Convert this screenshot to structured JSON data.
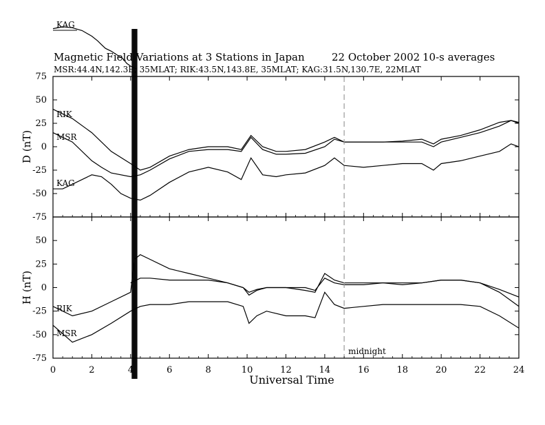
{
  "chart_data": {
    "type": "line",
    "title": "Magnetic Field Variations at 3 Stations in Japan",
    "date": "22 October 2002",
    "averaging": "10-s averages",
    "subtitle": "MSR:44.4N,142.3E, 35MLAT;  RIK:43.5N,143.8E, 35MLAT;  KAG:31.5N,130.7E, 22MLAT",
    "xlabel": "Universal Time",
    "xlim": [
      0,
      24
    ],
    "x_ticks": [
      0,
      2,
      4,
      6,
      8,
      10,
      12,
      14,
      16,
      18,
      20,
      22,
      24
    ],
    "x_tick_labels": [
      "0",
      "2",
      "4",
      "6",
      "8",
      "10",
      "12",
      "14",
      "16",
      "18",
      "20",
      "22",
      "24"
    ],
    "midnight_marker": {
      "x": 15,
      "label": "midnight"
    },
    "panels": [
      {
        "id": "D",
        "ylabel": "D (nT)",
        "ylim": [
          -75,
          75
        ],
        "y_ticks": [
          75,
          50,
          25,
          0,
          -25,
          -50,
          -75
        ],
        "y_tick_labels": [
          "75",
          "50",
          "25",
          "0",
          "-25",
          "-50",
          "-75"
        ],
        "series": [
          {
            "name": "RIK",
            "x": [
              0,
              1,
              2,
              3,
              4,
              4.5,
              5,
              6,
              7,
              8,
              9,
              9.7,
              10.2,
              10.8,
              11.5,
              12,
              13,
              14,
              14.5,
              15,
              16,
              17,
              18,
              19,
              19.6,
              20,
              21,
              22,
              23,
              23.6,
              24
            ],
            "y": [
              40,
              30,
              15,
              -5,
              -18,
              -25,
              -22,
              -10,
              -3,
              0,
              0,
              -3,
              12,
              0,
              -5,
              -5,
              -3,
              5,
              10,
              5,
              5,
              5,
              5,
              5,
              0,
              5,
              10,
              15,
              22,
              28,
              26
            ]
          },
          {
            "name": "MSR",
            "x": [
              0,
              1,
              2,
              2.5,
              3,
              4,
              4.5,
              5,
              6,
              7,
              8,
              9,
              9.7,
              10.2,
              10.8,
              11.5,
              12,
              13,
              14,
              14.5,
              15,
              16,
              17,
              18,
              19,
              19.6,
              20,
              21,
              22,
              23,
              23.6,
              24
            ],
            "y": [
              15,
              5,
              -15,
              -22,
              -28,
              -32,
              -30,
              -25,
              -13,
              -5,
              -3,
              -3,
              -5,
              10,
              -3,
              -8,
              -8,
              -7,
              0,
              8,
              5,
              5,
              5,
              6,
              8,
              3,
              8,
              12,
              18,
              26,
              28,
              25
            ]
          },
          {
            "name": "KAG",
            "x": [
              0,
              0.5,
              1,
              2,
              2.5,
              3,
              3.5,
              4,
              4.5,
              5,
              6,
              7,
              8,
              9,
              9.7,
              10.2,
              10.8,
              11.5,
              12,
              13,
              14,
              14.5,
              15,
              16,
              17,
              18,
              19,
              19.6,
              20,
              21,
              22,
              23,
              23.6,
              24
            ],
            "y": [
              -45,
              -45,
              -40,
              -30,
              -32,
              -40,
              -50,
              -55,
              -57,
              -52,
              -38,
              -27,
              -22,
              -27,
              -35,
              -12,
              -30,
              -32,
              -30,
              -28,
              -20,
              -12,
              -20,
              -22,
              -20,
              -18,
              -18,
              -25,
              -18,
              -15,
              -10,
              -5,
              3,
              0
            ]
          }
        ]
      },
      {
        "id": "H",
        "ylabel": "H (nT)",
        "ylim": [
          -75,
          75
        ],
        "y_ticks": [
          75,
          50,
          25,
          0,
          -25,
          -50,
          -75
        ],
        "y_tick_labels": [
          "75",
          "50",
          "25",
          "0",
          "-25",
          "-50",
          "-75"
        ],
        "series": [
          {
            "name": "RIK",
            "x": [
              0,
              1,
              2,
              3,
              4,
              4.2,
              4.5,
              5,
              6,
              7,
              8,
              9,
              9.8,
              10.1,
              10.5,
              11,
              12,
              13,
              13.5,
              14,
              14.5,
              15,
              16,
              17,
              18,
              19,
              20,
              21,
              22,
              23,
              24
            ],
            "y": [
              -20,
              -30,
              -25,
              -15,
              -5,
              30,
              35,
              30,
              20,
              15,
              10,
              5,
              0,
              -8,
              -3,
              0,
              0,
              -3,
              -5,
              15,
              8,
              5,
              5,
              5,
              3,
              5,
              8,
              8,
              5,
              -5,
              -20
            ]
          },
          {
            "name": "MSR",
            "x": [
              0,
              1,
              2,
              3,
              4,
              4.5,
              5,
              6,
              7,
              8,
              9,
              9.8,
              10.1,
              10.5,
              11,
              12,
              13,
              13.5,
              14,
              14.5,
              15,
              16,
              17,
              18,
              19,
              20,
              21,
              22,
              23,
              24
            ],
            "y": [
              -40,
              -58,
              -50,
              -38,
              -25,
              -20,
              -18,
              -18,
              -15,
              -15,
              -15,
              -20,
              -38,
              -30,
              -25,
              -30,
              -30,
              -32,
              -5,
              -18,
              -22,
              -20,
              -18,
              -18,
              -18,
              -18,
              -18,
              -20,
              -30,
              -43
            ]
          },
          {
            "name": "KAG",
            "x": [
              4,
              4.5,
              5,
              6,
              7,
              8,
              9,
              9.8,
              10.1,
              10.5,
              11,
              12,
              13,
              13.5,
              14,
              14.5,
              15,
              16,
              17,
              18,
              19,
              20,
              21,
              22,
              23,
              24
            ],
            "y": [
              5,
              10,
              10,
              8,
              8,
              8,
              5,
              0,
              -5,
              -2,
              0,
              0,
              0,
              -3,
              10,
              5,
              3,
              3,
              5,
              5,
              5,
              8,
              8,
              5,
              -2,
              -10
            ]
          }
        ]
      }
    ],
    "extra_trace": {
      "name": "KAG",
      "x": [
        0,
        0.5,
        1,
        1.5,
        2,
        2.3,
        2.5,
        2.7,
        3,
        3.3,
        3.6,
        3.8,
        4.0,
        4.3
      ],
      "y": [
        126,
        128,
        127,
        124,
        118,
        113,
        109,
        105,
        102,
        98,
        94,
        89,
        86,
        83
      ]
    }
  }
}
